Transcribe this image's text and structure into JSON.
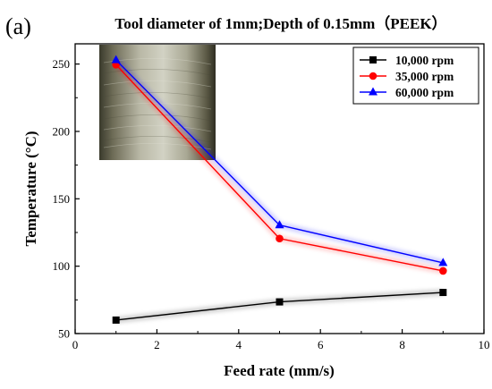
{
  "panel_label": "(a)",
  "chart_data": {
    "type": "line",
    "title": "Tool diameter of 1mm;Depth of 0.15mm（PEEK）",
    "xlabel": "Feed rate (mm/s)",
    "ylabel": "Temperature (°C)",
    "xlim": [
      0,
      10
    ],
    "ylim": [
      50,
      265
    ],
    "xticks": [
      0,
      2,
      4,
      6,
      8,
      10
    ],
    "yticks": [
      50,
      100,
      150,
      200,
      250
    ],
    "grid": false,
    "legend_position": "top-right",
    "inset_image": "machined surface photo (top-left inset)",
    "series": [
      {
        "name": "10,000 rpm",
        "color": "#000000",
        "marker": "square",
        "x": [
          1,
          5,
          9
        ],
        "y": [
          60,
          73.5,
          80.5
        ]
      },
      {
        "name": "35,000 rpm",
        "color": "#ff0000",
        "marker": "circle",
        "x": [
          1,
          5,
          9
        ],
        "y": [
          249.5,
          120.5,
          96.5
        ]
      },
      {
        "name": "60,000 rpm",
        "color": "#0000ff",
        "marker": "triangle",
        "x": [
          1,
          5,
          9
        ],
        "y": [
          253,
          130.5,
          102.5
        ]
      }
    ]
  }
}
